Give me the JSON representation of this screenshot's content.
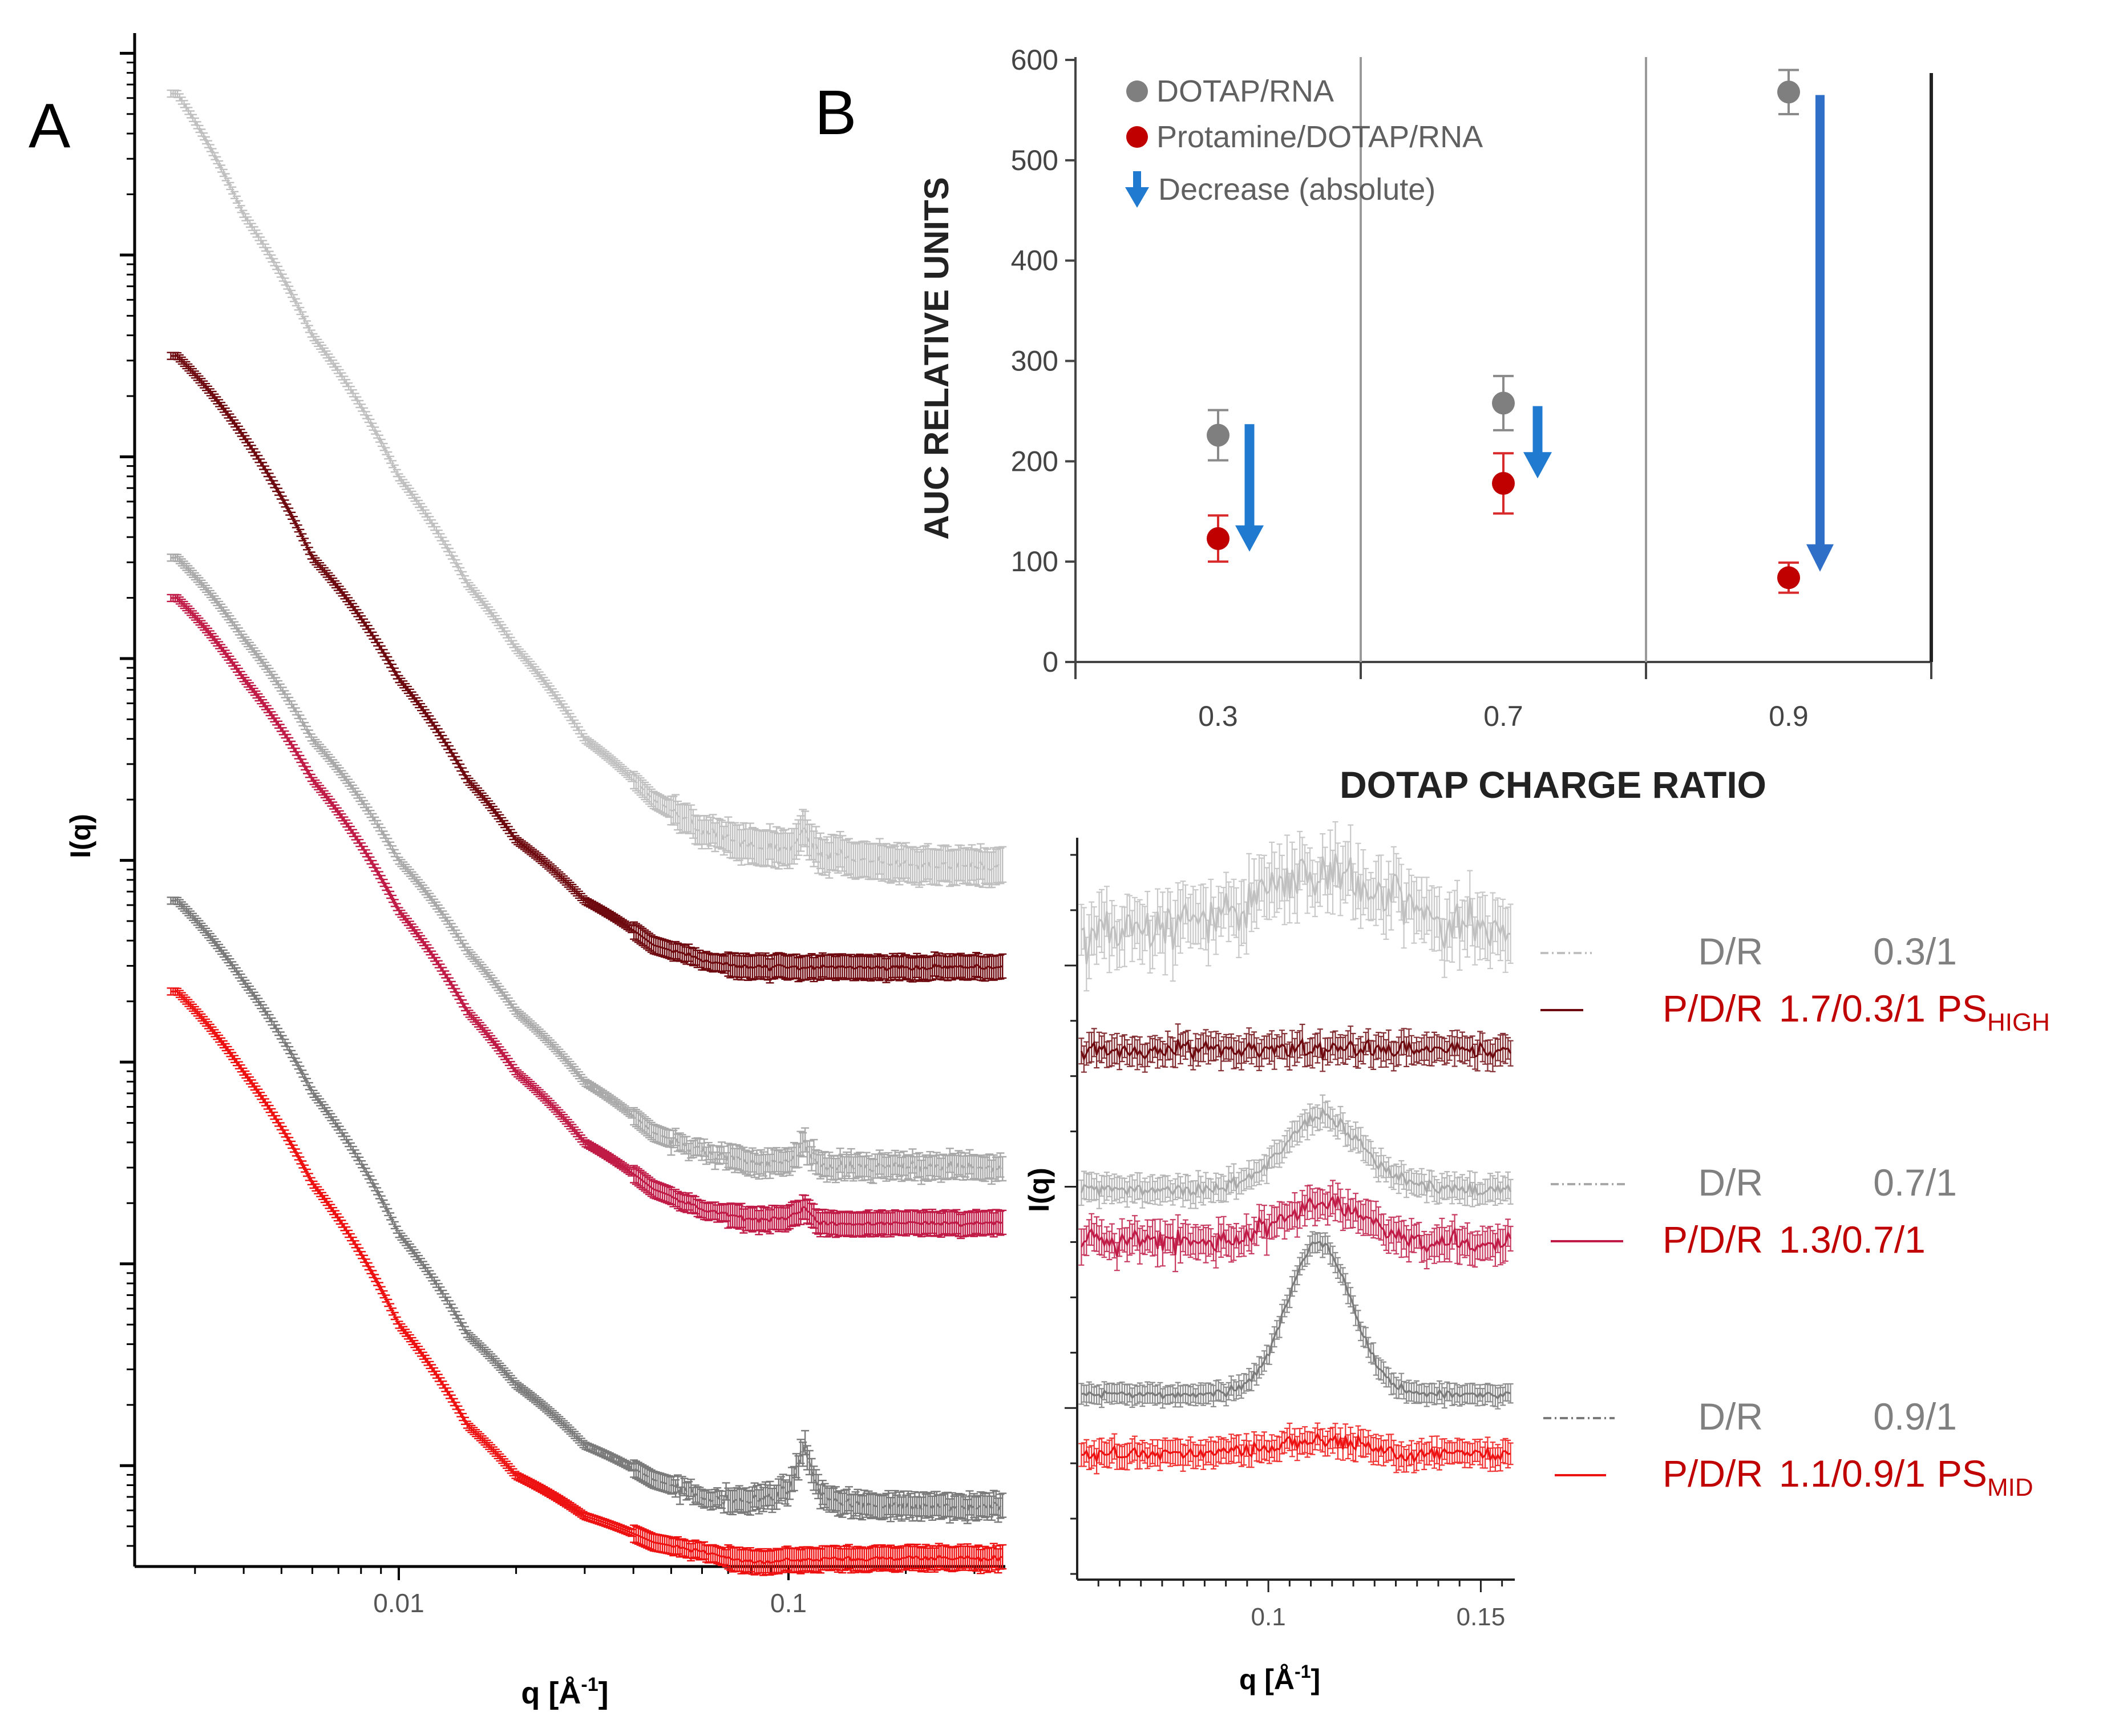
{
  "panels": {
    "a_label": "A",
    "b_label": "B"
  },
  "colors": {
    "dr_03": "#c0c0c0",
    "pdr_03": "#6e0a0f",
    "dr_07": "#a9a9a9",
    "pdr_07": "#c01a46",
    "dr_09": "#7a7a7a",
    "pdr_09": "#ee1111",
    "legend_gray": "#808080",
    "legend_red": "#c00000",
    "dot_gray": "#7f7f7f",
    "dot_red": "#c00000",
    "arrow_blue": "#2f6fc8",
    "legend_arrow_blue": "#1f7ad0"
  },
  "legend_c": [
    {
      "line": "dash",
      "color_key": "dr_03",
      "text_color_key": "legend_gray",
      "name": "D/R",
      "ratio": "0.3/1",
      "suffix": "",
      "sub": ""
    },
    {
      "line": "solid",
      "color_key": "pdr_03",
      "text_color_key": "legend_red",
      "name": "P/D/R",
      "ratio": "1.7/0.3/1",
      "suffix": "PS",
      "sub": "HIGH"
    },
    {
      "line": "dash",
      "color_key": "dr_07",
      "text_color_key": "legend_gray",
      "name": "D/R",
      "ratio": "0.7/1",
      "suffix": "",
      "sub": ""
    },
    {
      "line": "solid",
      "color_key": "pdr_07",
      "text_color_key": "legend_red",
      "name": "P/D/R",
      "ratio": "1.3/0.7/1",
      "suffix": "",
      "sub": ""
    },
    {
      "line": "dash",
      "color_key": "dr_09",
      "text_color_key": "legend_gray",
      "name": "D/R",
      "ratio": "0.9/1",
      "suffix": "",
      "sub": ""
    },
    {
      "line": "solid",
      "color_key": "pdr_09",
      "text_color_key": "legend_red",
      "name": "P/D/R",
      "ratio": "1.1/0.9/1",
      "suffix": "PS",
      "sub": "MID"
    }
  ],
  "chart_data": [
    {
      "id": "saxs",
      "type": "line",
      "xlabel": "q [Å-1]",
      "xlabel_base": "q [Å",
      "xlabel_sup": "-1",
      "xlabel_end": "]",
      "ylabel": "I(q)",
      "xscale": "log",
      "yscale": "log",
      "xlim": [
        0.0021,
        0.36
      ],
      "ylim": [
        -5.5,
        2.1
      ],
      "xticks": [
        0.01,
        0.1
      ],
      "xtick_labels": [
        "0.01",
        "0.1"
      ],
      "ytick_labels": [],
      "series": [
        {
          "name": "D/R 0.3/1",
          "color_key": "dr_03",
          "style": "dashed",
          "peak": "weak",
          "x": [
            0.0027,
            0.004,
            0.006,
            0.01,
            0.015,
            0.02,
            0.03,
            0.045,
            0.06,
            0.08,
            0.1,
            0.11,
            0.12,
            0.15,
            0.2,
            0.3,
            0.35
          ],
          "y": [
            1.8,
            1.2,
            0.6,
            -0.1,
            -0.63,
            -0.95,
            -1.4,
            -1.7,
            -1.85,
            -1.92,
            -1.95,
            -1.85,
            -1.97,
            -2.0,
            -2.02,
            -2.03,
            -2.03
          ]
        },
        {
          "name": "P/D/R 1.7/0.3/1 PSHIGH",
          "color_key": "pdr_03",
          "style": "solid",
          "peak": "none",
          "x": [
            0.0027,
            0.004,
            0.006,
            0.01,
            0.015,
            0.02,
            0.03,
            0.045,
            0.06,
            0.08,
            0.1,
            0.12,
            0.15,
            0.2,
            0.3,
            0.35
          ],
          "y": [
            0.5,
            0.1,
            -0.5,
            -1.1,
            -1.6,
            -1.9,
            -2.2,
            -2.42,
            -2.5,
            -2.53,
            -2.53,
            -2.53,
            -2.53,
            -2.53,
            -2.53,
            -2.53
          ]
        },
        {
          "name": "D/R 0.7/1",
          "color_key": "dr_07",
          "style": "dashed",
          "peak": "medium",
          "x": [
            0.0027,
            0.004,
            0.006,
            0.01,
            0.015,
            0.02,
            0.03,
            0.045,
            0.06,
            0.08,
            0.1,
            0.11,
            0.12,
            0.15,
            0.2,
            0.3,
            0.35
          ],
          "y": [
            -0.5,
            -0.9,
            -1.4,
            -2.0,
            -2.45,
            -2.75,
            -3.1,
            -3.35,
            -3.45,
            -3.5,
            -3.5,
            -3.4,
            -3.52,
            -3.52,
            -3.52,
            -3.52,
            -3.52
          ]
        },
        {
          "name": "P/D/R 1.3/0.7/1",
          "color_key": "pdr_07",
          "style": "solid",
          "peak": "weak",
          "x": [
            0.0027,
            0.004,
            0.006,
            0.01,
            0.015,
            0.02,
            0.03,
            0.045,
            0.06,
            0.08,
            0.1,
            0.11,
            0.12,
            0.15,
            0.2,
            0.3,
            0.35
          ],
          "y": [
            -0.7,
            -1.1,
            -1.6,
            -2.25,
            -2.75,
            -3.05,
            -3.4,
            -3.63,
            -3.73,
            -3.78,
            -3.78,
            -3.72,
            -3.8,
            -3.8,
            -3.8,
            -3.8,
            -3.8
          ]
        },
        {
          "name": "D/R 0.9/1",
          "color_key": "dr_09",
          "style": "dashed",
          "peak": "strong",
          "x": [
            0.0027,
            0.004,
            0.006,
            0.01,
            0.015,
            0.02,
            0.03,
            0.045,
            0.06,
            0.08,
            0.1,
            0.11,
            0.12,
            0.15,
            0.2,
            0.3,
            0.35
          ],
          "y": [
            -2.2,
            -2.6,
            -3.15,
            -3.85,
            -4.35,
            -4.6,
            -4.9,
            -5.07,
            -5.15,
            -5.18,
            -5.12,
            -4.9,
            -5.15,
            -5.2,
            -5.2,
            -5.2,
            -5.2
          ]
        },
        {
          "name": "P/D/R 1.1/0.9/1 PSMID",
          "color_key": "pdr_09",
          "style": "solid",
          "peak": "none",
          "x": [
            0.0027,
            0.004,
            0.006,
            0.01,
            0.015,
            0.02,
            0.03,
            0.045,
            0.06,
            0.08,
            0.1,
            0.12,
            0.15,
            0.2,
            0.3,
            0.35
          ],
          "y": [
            -2.65,
            -3.05,
            -3.6,
            -4.3,
            -4.8,
            -5.05,
            -5.25,
            -5.38,
            -5.43,
            -5.48,
            -5.47,
            -5.46,
            -5.46,
            -5.46,
            -5.46,
            -5.46
          ]
        }
      ]
    },
    {
      "id": "auc",
      "type": "scatter",
      "title": "",
      "xlabel": "DOTAP CHARGE RATIO",
      "ylabel": "AUC RELATIVE UNITS",
      "categories": [
        "0.3",
        "0.7",
        "0.9"
      ],
      "ylim": [
        0,
        600
      ],
      "yticks": [
        0,
        100,
        200,
        300,
        400,
        500,
        600
      ],
      "legend": [
        "DOTAP/RNA",
        "Protamine/DOTAP/RNA",
        "Decrease (absolute)"
      ],
      "series": [
        {
          "name": "DOTAP/RNA",
          "color_key": "dot_gray",
          "values": [
            226,
            258,
            568
          ],
          "errors": [
            25,
            27,
            22
          ]
        },
        {
          "name": "Protamine/DOTAP/RNA",
          "color_key": "dot_red",
          "values": [
            123,
            178,
            84
          ],
          "errors": [
            23,
            30,
            15
          ]
        }
      ],
      "decrease": [
        {
          "from": 237,
          "to": 110
        },
        {
          "from": 255,
          "to": 183
        },
        {
          "from": 565,
          "to": 90
        }
      ]
    },
    {
      "id": "peak_zoom",
      "type": "line",
      "xlabel": "q [Å-1]",
      "xlabel_base": "q [Å",
      "xlabel_sup": "-1",
      "xlabel_end": "]",
      "ylabel": "I(q)",
      "xlim": [
        0.055,
        0.158
      ],
      "ylim": [
        -5.0,
        0.6
      ],
      "xticks": [
        0.1,
        0.15
      ],
      "xtick_labels": [
        "0.1",
        "0.15"
      ],
      "ytick_labels": [],
      "series": [
        {
          "name": "D/R 0.3/1",
          "color_key": "dr_03",
          "base": -0.1,
          "amp": 0.45,
          "center": 0.112,
          "width": 0.016,
          "noise": 0.33
        },
        {
          "name": "P/D/R 1.7/0.3/1 PSHIGH",
          "color_key": "pdr_03",
          "base": -1.0,
          "amp": 0.0,
          "center": 0.112,
          "width": 0.01,
          "noise": 0.12
        },
        {
          "name": "D/R 0.7/1",
          "color_key": "dr_07",
          "base": -2.05,
          "amp": 0.55,
          "center": 0.113,
          "width": 0.009,
          "noise": 0.1
        },
        {
          "name": "P/D/R 1.3/0.7/1",
          "color_key": "pdr_07",
          "base": -2.45,
          "amp": 0.3,
          "center": 0.113,
          "width": 0.009,
          "noise": 0.15
        },
        {
          "name": "D/R 0.9/1",
          "color_key": "dr_09",
          "base": -3.6,
          "amp": 1.15,
          "center": 0.112,
          "width": 0.0075,
          "noise": 0.06
        },
        {
          "name": "P/D/R 1.1/0.9/1 PSMID",
          "color_key": "pdr_09",
          "base": -4.05,
          "amp": 0.1,
          "center": 0.112,
          "width": 0.01,
          "noise": 0.1
        }
      ]
    }
  ]
}
